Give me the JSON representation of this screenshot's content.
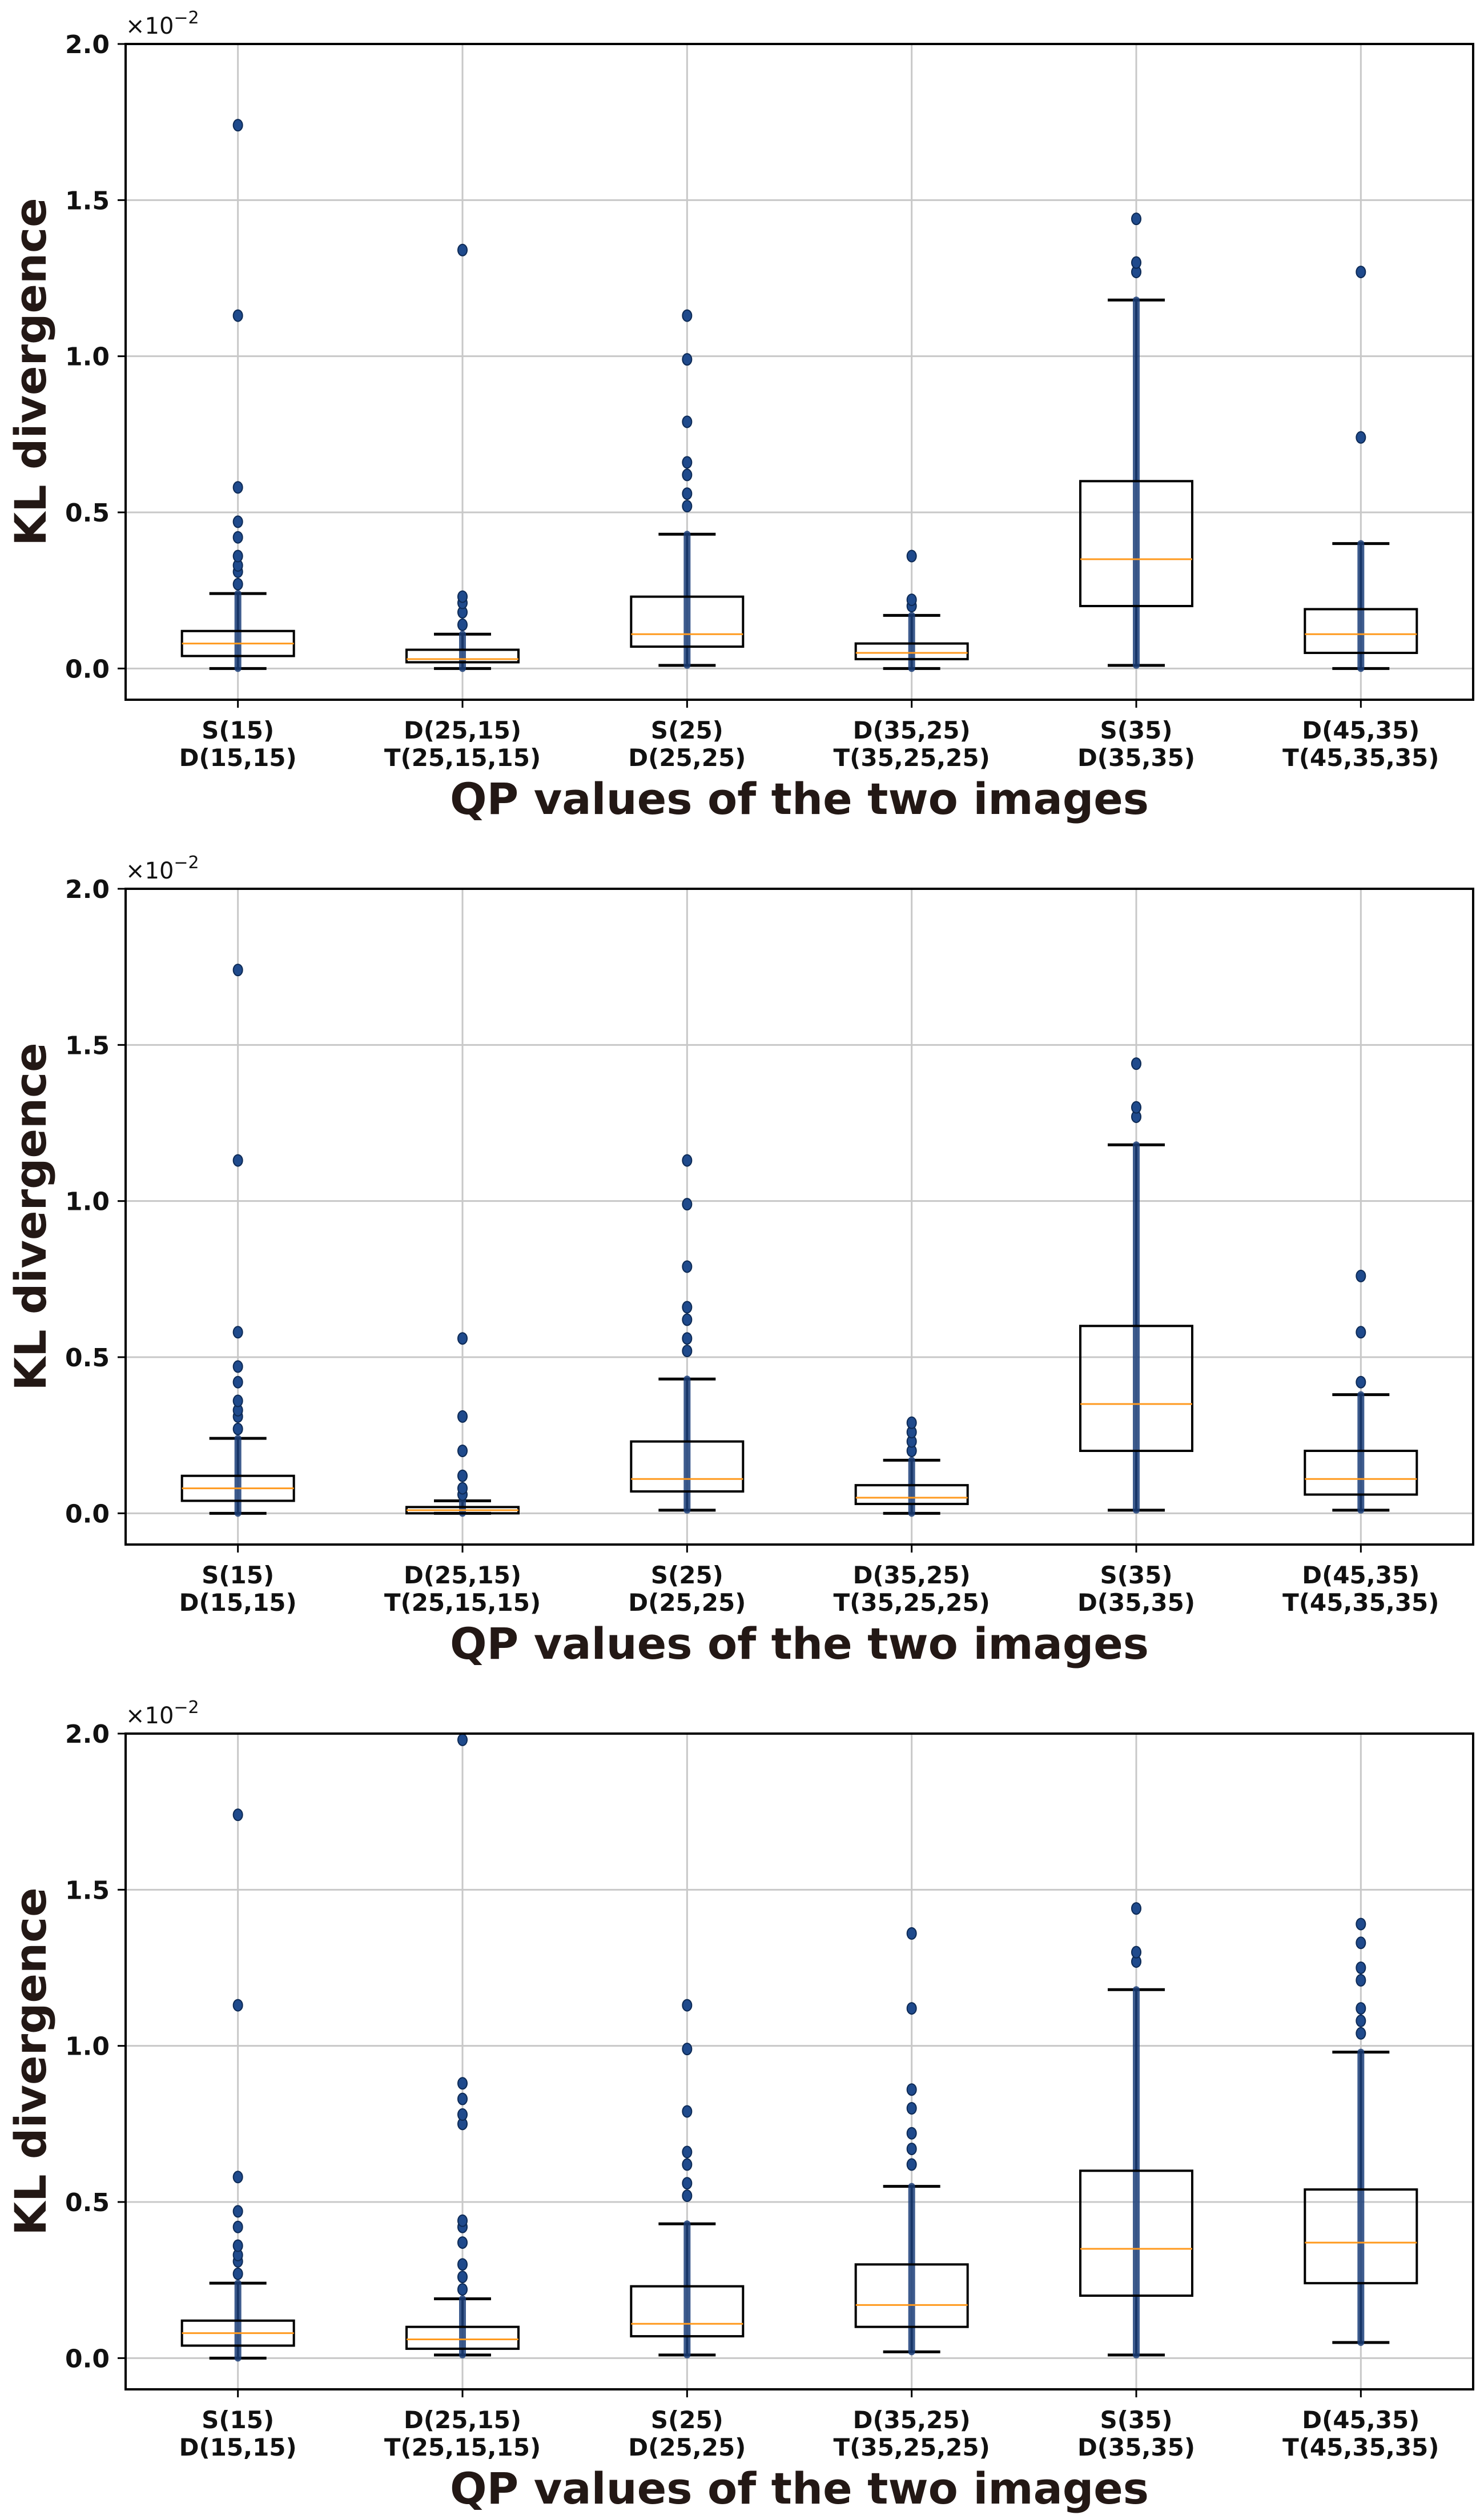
{
  "chart_data": [
    {
      "type": "box",
      "xlabel": "QP values of the two images",
      "ylabel": "KL divergence",
      "multiplier": {
        "base": "×10",
        "exp": "−2"
      },
      "ylim": [
        -0.1,
        2.0
      ],
      "yticks": [
        "0.0",
        "0.5",
        "1.0",
        "1.5",
        "2.0"
      ],
      "grid": true,
      "categories": [
        {
          "line1": "S(15)",
          "line2": "D(15,15)"
        },
        {
          "line1": "D(25,15)",
          "line2": "T(25,15,15)"
        },
        {
          "line1": "S(25)",
          "line2": "D(25,25)"
        },
        {
          "line1": "D(35,25)",
          "line2": "T(35,25,25)"
        },
        {
          "line1": "S(35)",
          "line2": "D(35,35)"
        },
        {
          "line1": "D(45,35)",
          "line2": "T(45,35,35)"
        }
      ],
      "boxes": [
        {
          "whislo": 0.0,
          "q1": 0.04,
          "med": 0.08,
          "q3": 0.12,
          "whishi": 0.24,
          "fliers": [
            0.27,
            0.31,
            0.33,
            0.36,
            0.42,
            0.47,
            0.58,
            1.13,
            1.74
          ]
        },
        {
          "whislo": 0.0,
          "q1": 0.02,
          "med": 0.03,
          "q3": 0.06,
          "whishi": 0.11,
          "fliers": [
            0.14,
            0.18,
            0.21,
            0.23,
            1.34
          ]
        },
        {
          "whislo": 0.01,
          "q1": 0.07,
          "med": 0.11,
          "q3": 0.23,
          "whishi": 0.43,
          "fliers": [
            0.52,
            0.56,
            0.62,
            0.66,
            0.79,
            0.99,
            1.13
          ]
        },
        {
          "whislo": 0.0,
          "q1": 0.03,
          "med": 0.05,
          "q3": 0.08,
          "whishi": 0.17,
          "fliers": [
            0.2,
            0.22,
            0.36
          ]
        },
        {
          "whislo": 0.01,
          "q1": 0.2,
          "med": 0.35,
          "q3": 0.6,
          "whishi": 1.18,
          "fliers": [
            1.27,
            1.3,
            1.44
          ]
        },
        {
          "whislo": 0.0,
          "q1": 0.05,
          "med": 0.11,
          "q3": 0.19,
          "whishi": 0.4,
          "fliers": [
            0.74,
            1.27
          ]
        }
      ]
    },
    {
      "type": "box",
      "xlabel": "QP values of the two images",
      "ylabel": "KL divergence",
      "multiplier": {
        "base": "×10",
        "exp": "−2"
      },
      "ylim": [
        -0.1,
        2.0
      ],
      "yticks": [
        "0.0",
        "0.5",
        "1.0",
        "1.5",
        "2.0"
      ],
      "grid": true,
      "categories": [
        {
          "line1": "S(15)",
          "line2": "D(15,15)"
        },
        {
          "line1": "D(25,15)",
          "line2": "T(25,15,15)"
        },
        {
          "line1": "S(25)",
          "line2": "D(25,25)"
        },
        {
          "line1": "D(35,25)",
          "line2": "T(35,25,25)"
        },
        {
          "line1": "S(35)",
          "line2": "D(35,35)"
        },
        {
          "line1": "D(45,35)",
          "line2": "T(45,35,35)"
        }
      ],
      "boxes": [
        {
          "whislo": 0.0,
          "q1": 0.04,
          "med": 0.08,
          "q3": 0.12,
          "whishi": 0.24,
          "fliers": [
            0.27,
            0.31,
            0.33,
            0.36,
            0.42,
            0.47,
            0.58,
            1.13,
            1.74
          ]
        },
        {
          "whislo": 0.0,
          "q1": 0.0,
          "med": 0.01,
          "q3": 0.02,
          "whishi": 0.04,
          "fliers": [
            0.06,
            0.08,
            0.12,
            0.2,
            0.31,
            0.56
          ]
        },
        {
          "whislo": 0.01,
          "q1": 0.07,
          "med": 0.11,
          "q3": 0.23,
          "whishi": 0.43,
          "fliers": [
            0.52,
            0.56,
            0.62,
            0.66,
            0.79,
            0.99,
            1.13
          ]
        },
        {
          "whislo": 0.0,
          "q1": 0.03,
          "med": 0.05,
          "q3": 0.09,
          "whishi": 0.17,
          "fliers": [
            0.2,
            0.23,
            0.26,
            0.29
          ]
        },
        {
          "whislo": 0.01,
          "q1": 0.2,
          "med": 0.35,
          "q3": 0.6,
          "whishi": 1.18,
          "fliers": [
            1.27,
            1.3,
            1.44
          ]
        },
        {
          "whislo": 0.01,
          "q1": 0.06,
          "med": 0.11,
          "q3": 0.2,
          "whishi": 0.38,
          "fliers": [
            0.42,
            0.58,
            0.76
          ]
        }
      ]
    },
    {
      "type": "box",
      "xlabel": "QP values of the two images",
      "ylabel": "KL divergence",
      "multiplier": {
        "base": "×10",
        "exp": "−2"
      },
      "ylim": [
        -0.1,
        2.0
      ],
      "yticks": [
        "0.0",
        "0.5",
        "1.0",
        "1.5",
        "2.0"
      ],
      "grid": true,
      "categories": [
        {
          "line1": "S(15)",
          "line2": "D(15,15)"
        },
        {
          "line1": "D(25,15)",
          "line2": "T(25,15,15)"
        },
        {
          "line1": "S(25)",
          "line2": "D(25,25)"
        },
        {
          "line1": "D(35,25)",
          "line2": "T(35,25,25)"
        },
        {
          "line1": "S(35)",
          "line2": "D(35,35)"
        },
        {
          "line1": "D(45,35)",
          "line2": "T(45,35,35)"
        }
      ],
      "boxes": [
        {
          "whislo": 0.0,
          "q1": 0.04,
          "med": 0.08,
          "q3": 0.12,
          "whishi": 0.24,
          "fliers": [
            0.27,
            0.31,
            0.33,
            0.36,
            0.42,
            0.47,
            0.58,
            1.13,
            1.74
          ]
        },
        {
          "whislo": 0.01,
          "q1": 0.03,
          "med": 0.06,
          "q3": 0.1,
          "whishi": 0.19,
          "fliers": [
            0.22,
            0.26,
            0.3,
            0.37,
            0.42,
            0.44,
            0.75,
            0.78,
            0.83,
            0.88,
            1.98
          ]
        },
        {
          "whislo": 0.01,
          "q1": 0.07,
          "med": 0.11,
          "q3": 0.23,
          "whishi": 0.43,
          "fliers": [
            0.52,
            0.56,
            0.62,
            0.66,
            0.79,
            0.99,
            1.13
          ]
        },
        {
          "whislo": 0.02,
          "q1": 0.1,
          "med": 0.17,
          "q3": 0.3,
          "whishi": 0.55,
          "fliers": [
            0.62,
            0.67,
            0.72,
            0.8,
            0.86,
            1.12,
            1.36
          ]
        },
        {
          "whislo": 0.01,
          "q1": 0.2,
          "med": 0.35,
          "q3": 0.6,
          "whishi": 1.18,
          "fliers": [
            1.27,
            1.3,
            1.44
          ]
        },
        {
          "whislo": 0.05,
          "q1": 0.24,
          "med": 0.37,
          "q3": 0.54,
          "whishi": 0.98,
          "fliers": [
            1.04,
            1.08,
            1.12,
            1.21,
            1.25,
            1.33,
            1.39
          ]
        }
      ]
    }
  ]
}
